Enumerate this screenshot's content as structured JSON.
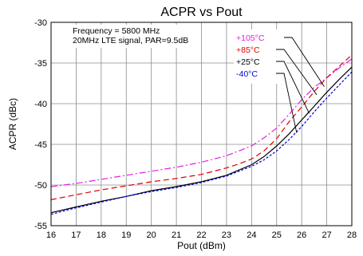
{
  "chart_data": {
    "type": "line",
    "title": "ACPR vs Pout",
    "xlabel": "Pout (dBm)",
    "ylabel": "ACPR (dBc)",
    "xlim": [
      16,
      28
    ],
    "ylim": [
      -55,
      -30
    ],
    "xticks": [
      16,
      17,
      18,
      19,
      20,
      21,
      22,
      23,
      24,
      25,
      26,
      27,
      28
    ],
    "yticks": [
      -30,
      -35,
      -40,
      -45,
      -50,
      -55
    ],
    "grid": true,
    "annotations": [
      "Frequency = 5800 MHz",
      "20MHz LTE signal, PAR=9.5dB"
    ],
    "legend_placement": "top-right",
    "series": [
      {
        "name": "+105°C",
        "color": "#e020e0",
        "dash": "dashdot",
        "x": [
          16,
          17,
          18,
          19,
          20,
          21,
          22,
          23,
          24,
          24.5,
          25,
          25.5,
          26,
          26.5,
          27,
          27.5,
          28
        ],
        "y": [
          -50.2,
          -49.8,
          -49.3,
          -48.8,
          -48.3,
          -47.8,
          -47.2,
          -46.4,
          -45.2,
          -44.2,
          -43.0,
          -41.3,
          -39.5,
          -38.0,
          -36.8,
          -35.6,
          -34.5
        ]
      },
      {
        "name": "+85°C",
        "color": "#e00000",
        "dash": "dash",
        "x": [
          16,
          17,
          18,
          19,
          20,
          21,
          22,
          23,
          23.5,
          24,
          24.5,
          25,
          25.5,
          26,
          26.5,
          27,
          27.5,
          28
        ],
        "y": [
          -51.8,
          -51.2,
          -50.6,
          -50.1,
          -49.6,
          -49.2,
          -48.7,
          -47.9,
          -47.4,
          -46.8,
          -45.8,
          -44.3,
          -42.2,
          -40.4,
          -38.5,
          -36.8,
          -35.4,
          -34.0
        ]
      },
      {
        "name": "+25°C",
        "color": "#000000",
        "dash": "solid",
        "x": [
          16,
          17,
          18,
          19,
          20,
          21,
          22,
          23,
          24,
          24.5,
          25,
          25.5,
          26,
          26.5,
          27,
          27.5,
          28
        ],
        "y": [
          -53.4,
          -52.7,
          -52.0,
          -51.4,
          -50.7,
          -50.2,
          -49.6,
          -48.8,
          -47.5,
          -46.5,
          -45.2,
          -43.7,
          -42.0,
          -40.3,
          -38.6,
          -37.0,
          -35.5
        ]
      },
      {
        "name": "-40°C",
        "color": "#0000e0",
        "dash": "shortdash",
        "x": [
          16,
          17,
          18,
          19,
          20,
          21,
          22,
          23,
          24,
          24.5,
          25,
          25.5,
          26,
          26.5,
          27,
          27.5,
          28
        ],
        "y": [
          -53.6,
          -52.8,
          -52.1,
          -51.4,
          -50.8,
          -50.3,
          -49.7,
          -48.9,
          -47.7,
          -46.9,
          -45.8,
          -44.4,
          -42.8,
          -41.0,
          -39.3,
          -37.7,
          -36.1
        ]
      }
    ]
  }
}
